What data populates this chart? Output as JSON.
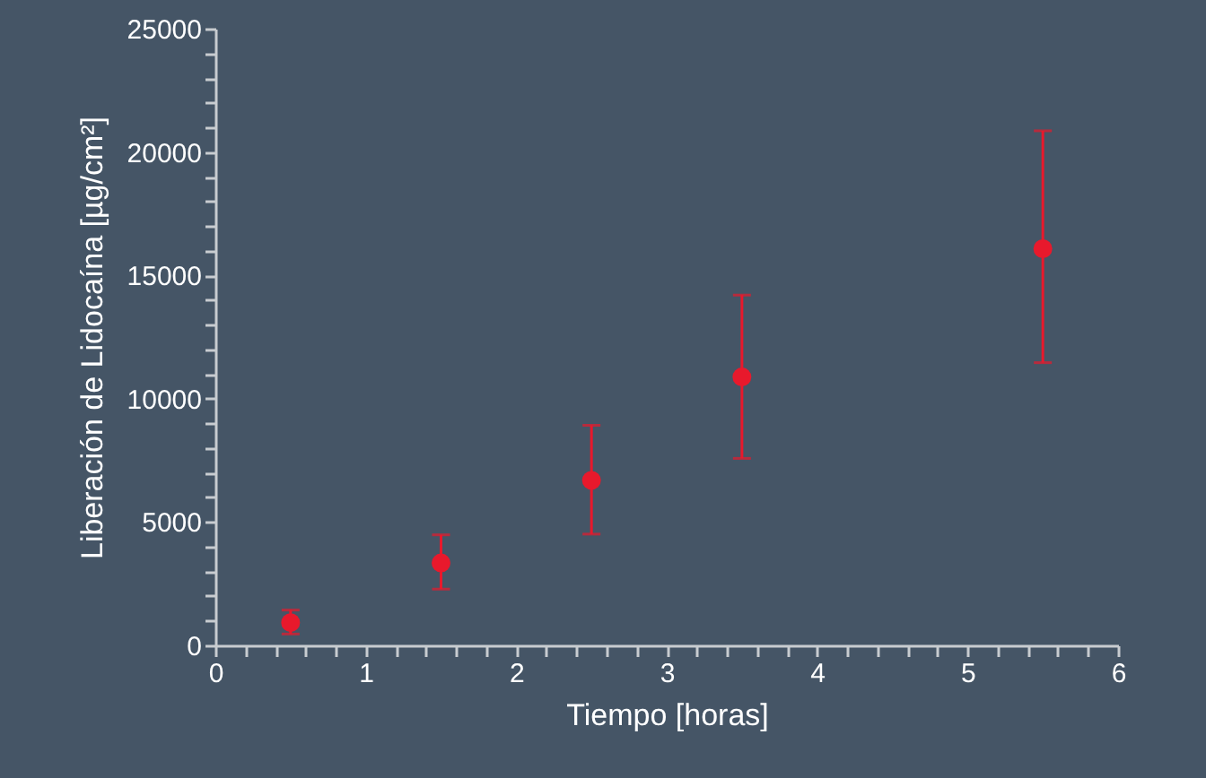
{
  "chart_data": {
    "type": "scatter",
    "xlabel": "Tiempo [horas]",
    "ylabel": "Liberación de Lidocaína [µg/cm²]",
    "x": [
      0.5,
      1.5,
      2.5,
      3.5,
      5.5
    ],
    "series": [
      {
        "color": "#e8192c",
        "values": [
          920,
          3340,
          6690,
          10880,
          16080
        ],
        "errors": [
          [
            460,
            1430
          ],
          [
            2280,
            4480
          ],
          [
            4510,
            8920
          ],
          [
            7580,
            14200
          ],
          [
            11460,
            20860
          ]
        ]
      }
    ],
    "marker": "circle",
    "grid": false,
    "xlim": [
      0,
      6
    ],
    "xticks": [
      0,
      {
        "value": 0.2,
        "label": null
      },
      {
        "value": 0.4,
        "label": null
      },
      {
        "value": 0.6,
        "label": null
      },
      {
        "value": 0.8,
        "label": null
      },
      1,
      {
        "value": 1.2,
        "label": null
      },
      {
        "value": 1.4,
        "label": null
      },
      {
        "value": 1.6,
        "label": null
      },
      {
        "value": 1.8,
        "label": null
      },
      2,
      {
        "value": 2.2,
        "label": null
      },
      {
        "value": 2.4,
        "label": null
      },
      {
        "value": 2.6,
        "label": null
      },
      {
        "value": 2.8,
        "label": null
      },
      3,
      {
        "value": 3.2,
        "label": null
      },
      {
        "value": 3.4,
        "label": null
      },
      {
        "value": 3.6,
        "label": null
      },
      {
        "value": 3.8,
        "label": null
      },
      4,
      {
        "value": 4.2,
        "label": null
      },
      {
        "value": 4.4,
        "label": null
      },
      {
        "value": 4.6,
        "label": null
      },
      {
        "value": 4.8,
        "label": null
      },
      5,
      {
        "value": 5.2,
        "label": null
      },
      {
        "value": 5.4,
        "label": null
      },
      {
        "value": 5.6,
        "label": null
      },
      {
        "value": 5.8,
        "label": null
      },
      6
    ],
    "ylim": [
      0,
      25000
    ],
    "yticks": [
      0,
      {
        "value": 1000,
        "label": null
      },
      {
        "value": 2000,
        "label": null
      },
      {
        "value": 3000,
        "label": null
      },
      {
        "value": 4000,
        "label": null
      },
      5000,
      {
        "value": 6000,
        "label": null
      },
      {
        "value": 7000,
        "label": null
      },
      {
        "value": 8000,
        "label": null
      },
      {
        "value": 9000,
        "label": null
      },
      10000,
      {
        "value": 11000,
        "label": null
      },
      {
        "value": 12000,
        "label": null
      },
      {
        "value": 13000,
        "label": null
      },
      {
        "value": 14000,
        "label": null
      },
      15000,
      {
        "value": 16000,
        "label": null
      },
      {
        "value": 17000,
        "label": null
      },
      {
        "value": 18000,
        "label": null
      },
      {
        "value": 19000,
        "label": null
      },
      20000,
      {
        "value": 21000,
        "label": null
      },
      {
        "value": 22000,
        "label": null
      },
      {
        "value": 23000,
        "label": null
      },
      {
        "value": 24000,
        "label": null
      },
      25000
    ]
  }
}
